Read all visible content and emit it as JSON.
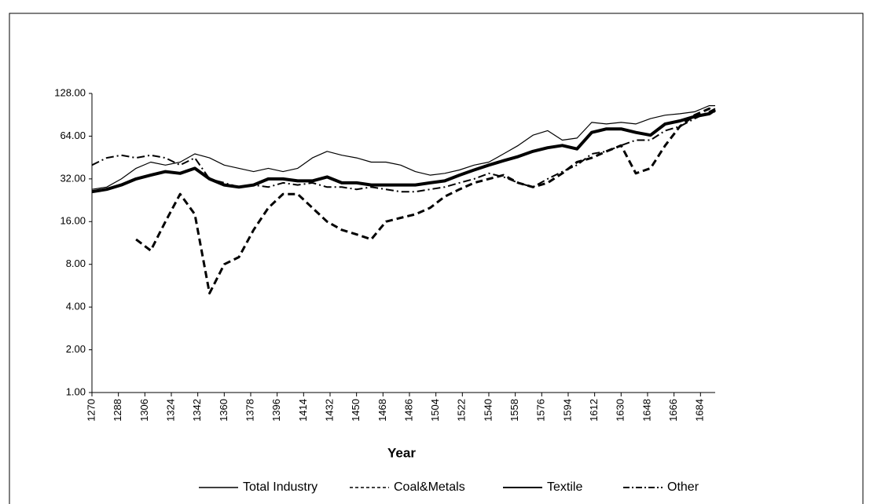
{
  "chart_data": {
    "type": "line",
    "x_label": "Year",
    "x": [
      1270,
      1280,
      1290,
      1300,
      1310,
      1320,
      1330,
      1340,
      1350,
      1360,
      1370,
      1380,
      1390,
      1400,
      1410,
      1420,
      1430,
      1440,
      1450,
      1460,
      1470,
      1480,
      1490,
      1500,
      1510,
      1520,
      1530,
      1540,
      1550,
      1560,
      1570,
      1580,
      1590,
      1600,
      1610,
      1620,
      1630,
      1640,
      1650,
      1660,
      1670,
      1680,
      1690,
      1694
    ],
    "series": [
      {
        "name": "Total Industry",
        "color": "#000000",
        "values": [
          27,
          28,
          32,
          38,
          42,
          40,
          42,
          48,
          45,
          40,
          38,
          36,
          38,
          36,
          38,
          45,
          50,
          47,
          45,
          42,
          42,
          40,
          36,
          34,
          35,
          37,
          40,
          42,
          48,
          55,
          65,
          70,
          60,
          62,
          80,
          78,
          80,
          78,
          85,
          90,
          92,
          95,
          105,
          105
        ]
      },
      {
        "name": "Coal&Metals",
        "color": "#000000",
        "values": [
          null,
          null,
          null,
          12,
          10,
          16,
          25,
          18,
          5,
          8,
          9,
          14,
          20,
          25,
          25,
          20,
          16,
          14,
          13,
          12,
          16,
          17,
          18,
          20,
          24,
          27,
          30,
          32,
          34,
          30,
          28,
          30,
          35,
          42,
          45,
          50,
          55,
          35,
          38,
          55,
          75,
          90,
          100,
          95
        ]
      },
      {
        "name": "Textile",
        "color": "#000000",
        "values": [
          26,
          27,
          29,
          32,
          34,
          36,
          35,
          38,
          32,
          29,
          28,
          29,
          32,
          32,
          31,
          31,
          33,
          30,
          30,
          29,
          29,
          29,
          29,
          30,
          31,
          34,
          37,
          40,
          43,
          46,
          50,
          53,
          55,
          52,
          68,
          72,
          72,
          68,
          65,
          78,
          82,
          88,
          92,
          98
        ]
      },
      {
        "name": "Other",
        "color": "#000000",
        "values": [
          40,
          45,
          47,
          45,
          47,
          45,
          40,
          45,
          32,
          30,
          28,
          29,
          28,
          30,
          29,
          30,
          28,
          28,
          27,
          28,
          27,
          26,
          26,
          27,
          28,
          30,
          32,
          35,
          33,
          30,
          28,
          32,
          36,
          40,
          48,
          50,
          55,
          60,
          60,
          70,
          75,
          85,
          95,
          100
        ]
      }
    ],
    "xlim": [
      1270,
      1694
    ],
    "xticks": [
      1270,
      1288,
      1306,
      1324,
      1342,
      1360,
      1378,
      1396,
      1414,
      1432,
      1450,
      1468,
      1486,
      1504,
      1522,
      1540,
      1558,
      1576,
      1594,
      1612,
      1630,
      1648,
      1666,
      1684
    ],
    "ylim": [
      1,
      128
    ],
    "yscale": "log",
    "yticks": [
      {
        "value": 1,
        "label": "1.00"
      },
      {
        "value": 2,
        "label": "2.00"
      },
      {
        "value": 4,
        "label": "4.00"
      },
      {
        "value": 8,
        "label": "8.00"
      },
      {
        "value": 16,
        "label": "16.00"
      },
      {
        "value": 32,
        "label": "32.00"
      },
      {
        "value": 64,
        "label": "64.00"
      },
      {
        "value": 128,
        "label": "128.00"
      }
    ],
    "legend": "bottom"
  }
}
